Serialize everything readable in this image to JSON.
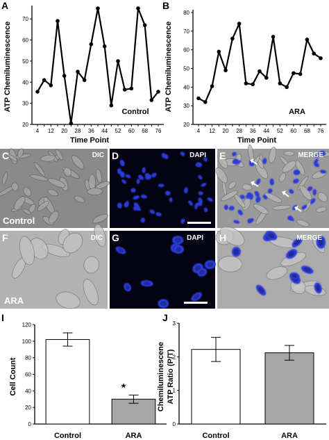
{
  "panels": {
    "A": {
      "letter": "A",
      "ylabel": "ATP Chemiluminescence",
      "xlabel": "Time Point",
      "condition": "Control"
    },
    "B": {
      "letter": "B",
      "ylabel": "ATP Chemiluminescence",
      "xlabel": "Time Point",
      "condition": "ARA"
    },
    "C": {
      "letter": "C",
      "channel": "DIC",
      "condition": "Control"
    },
    "D": {
      "letter": "D",
      "channel": "DAPI"
    },
    "E": {
      "letter": "E",
      "channel": "MERGE"
    },
    "F": {
      "letter": "F",
      "channel": "DIC",
      "condition": "ARA"
    },
    "G": {
      "letter": "G",
      "channel": "DAPI"
    },
    "H": {
      "letter": "H",
      "channel": "MERGE"
    },
    "I": {
      "letter": "I",
      "ylabel": "Cell Count",
      "significance": "*"
    },
    "J": {
      "letter": "J",
      "ylabel_line1": "Chemiluminescene",
      "ylabel_line2": "ATP Ratio (P/T)"
    }
  },
  "colors": {
    "nucleus": "#2a3ad8",
    "bar_control": "#ffffff",
    "bar_ara": "#a6a6a6",
    "line": "#000000"
  },
  "chart_data": [
    {
      "panel": "A",
      "type": "line",
      "xlabel": "Time Point",
      "ylabel": "ATP Chemiluminescence",
      "x_ticks": [
        "4",
        "8",
        "12",
        "16",
        "20",
        "24",
        "28",
        "32",
        "36",
        "40",
        "44",
        "48",
        "52",
        "56",
        "60",
        "64",
        "68",
        "72",
        "76"
      ],
      "x_tick_labels_shown": [
        "4",
        "12",
        "20",
        "28",
        "36",
        "44",
        "52",
        "60",
        "68",
        "76"
      ],
      "x": [
        4,
        8,
        12,
        16,
        20,
        24,
        28,
        32,
        36,
        40,
        44,
        48,
        52,
        56,
        60,
        64,
        68,
        72,
        76
      ],
      "y": [
        35.5,
        41,
        38.5,
        69,
        43,
        20.5,
        45,
        41,
        58,
        75,
        57,
        29,
        50,
        36.5,
        37,
        75,
        67,
        31.5,
        35.5
      ],
      "ylim": [
        20,
        75
      ],
      "y_ticks": [
        20,
        30,
        40,
        50,
        60,
        70
      ],
      "annotation": "Control"
    },
    {
      "panel": "B",
      "type": "line",
      "xlabel": "Time Point",
      "ylabel": "ATP Chemiluminescence",
      "x_ticks": [
        "4",
        "8",
        "12",
        "16",
        "20",
        "24",
        "28",
        "32",
        "36",
        "40",
        "44",
        "48",
        "52",
        "56",
        "60",
        "64",
        "68",
        "72",
        "76"
      ],
      "x_tick_labels_shown": [
        "4",
        "12",
        "20",
        "28",
        "36",
        "44",
        "52",
        "60",
        "68",
        "76"
      ],
      "x": [
        4,
        8,
        12,
        16,
        20,
        24,
        28,
        32,
        36,
        40,
        44,
        48,
        52,
        56,
        60,
        64,
        68,
        72,
        76
      ],
      "y": [
        34,
        32,
        40.5,
        59,
        49,
        66,
        74,
        42,
        41.5,
        48.5,
        45,
        67,
        42,
        40,
        47.5,
        47,
        65.5,
        58,
        55.5
      ],
      "ylim": [
        20,
        80
      ],
      "y_ticks": [
        20,
        30,
        40,
        50,
        60,
        70,
        80
      ],
      "annotation": "ARA"
    },
    {
      "panel": "I",
      "type": "bar",
      "ylabel": "Cell Count",
      "categories": [
        "Control",
        "ARA"
      ],
      "values": [
        102,
        30
      ],
      "errors": [
        8,
        5
      ],
      "ylim": [
        0,
        120
      ],
      "y_ticks": [
        0,
        20,
        40,
        60,
        80,
        100,
        120
      ]
    },
    {
      "panel": "J",
      "type": "bar",
      "ylabel": "Chemiluminescene ATP Ratio (P/T)",
      "categories": [
        "Control",
        "ARA"
      ],
      "values": [
        2.22,
        2.12
      ],
      "errors": [
        0.36,
        0.22
      ],
      "ylim": [
        0,
        3
      ],
      "y_ticks": [
        0,
        1,
        2,
        3
      ]
    }
  ]
}
